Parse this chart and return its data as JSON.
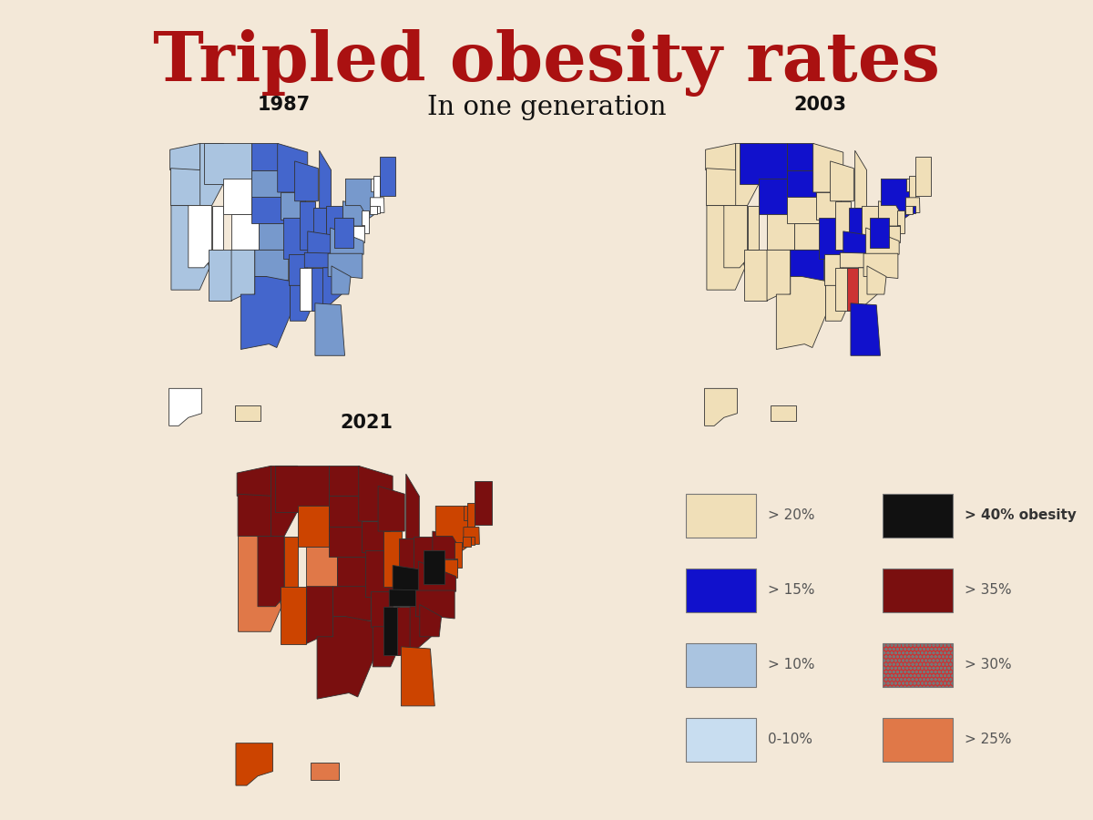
{
  "title": "Tripled obesity rates",
  "subtitle": "In one generation",
  "title_color": "#AA1111",
  "subtitle_color": "#111111",
  "bg_color": "#F3E8D8",
  "year_labels": [
    "1987",
    "2003",
    "2021"
  ],
  "color_map_1987": {
    "dark_blue": "#4466CC",
    "mid_blue": "#7799CC",
    "light_blue": "#AAC4E0",
    "white": "#FFFFFF",
    "yellow": "#F0DFB8"
  },
  "color_map_2003": {
    "dark_blue": "#1111CC",
    "orange_red": "#CC3333",
    "yellow": "#F0DFB8"
  },
  "color_map_2021": {
    "black": "#111111",
    "dark_red": "#7A0F0F",
    "orange_med": "#CC4400",
    "orange_lt": "#E07848"
  },
  "state_data_1987": {
    "AL": "dark_blue",
    "AK": "white",
    "AZ": "light_blue",
    "AR": "dark_blue",
    "CA": "light_blue",
    "CO": "white",
    "CT": "white",
    "DE": "white",
    "FL": "mid_blue",
    "GA": "dark_blue",
    "HI": "yellow",
    "ID": "light_blue",
    "IL": "dark_blue",
    "IN": "dark_blue",
    "IA": "mid_blue",
    "KS": "mid_blue",
    "KY": "dark_blue",
    "LA": "dark_blue",
    "ME": "dark_blue",
    "MD": "white",
    "MA": "white",
    "MI": "dark_blue",
    "MN": "dark_blue",
    "MS": "white",
    "MO": "dark_blue",
    "MT": "light_blue",
    "NE": "dark_blue",
    "NV": "white",
    "NH": "white",
    "NJ": "white",
    "NM": "light_blue",
    "NY": "mid_blue",
    "NC": "mid_blue",
    "ND": "dark_blue",
    "OH": "dark_blue",
    "OK": "mid_blue",
    "OR": "light_blue",
    "PA": "mid_blue",
    "RI": "white",
    "SC": "mid_blue",
    "SD": "mid_blue",
    "TN": "dark_blue",
    "TX": "dark_blue",
    "UT": "white",
    "VT": "white",
    "VA": "mid_blue",
    "WA": "light_blue",
    "WV": "dark_blue",
    "WI": "dark_blue",
    "WY": "white"
  },
  "state_data_2003": {
    "AL": "orange_red",
    "AK": "yellow",
    "AZ": "yellow",
    "AR": "yellow",
    "CA": "yellow",
    "CO": "yellow",
    "CT": "yellow",
    "DE": "yellow",
    "FL": "dark_blue",
    "GA": "yellow",
    "HI": "yellow",
    "ID": "yellow",
    "IL": "yellow",
    "IN": "dark_blue",
    "IA": "yellow",
    "KS": "yellow",
    "KY": "dark_blue",
    "LA": "yellow",
    "ME": "yellow",
    "MD": "yellow",
    "MA": "yellow",
    "MI": "yellow",
    "MN": "yellow",
    "MS": "yellow",
    "MO": "dark_blue",
    "MT": "dark_blue",
    "NE": "yellow",
    "NV": "yellow",
    "NH": "yellow",
    "NJ": "yellow",
    "NM": "yellow",
    "NY": "dark_blue",
    "NC": "yellow",
    "ND": "dark_blue",
    "OH": "yellow",
    "OK": "dark_blue",
    "OR": "yellow",
    "PA": "yellow",
    "RI": "dark_blue",
    "SC": "yellow",
    "SD": "dark_blue",
    "TN": "yellow",
    "TX": "yellow",
    "UT": "yellow",
    "VT": "yellow",
    "VA": "yellow",
    "WA": "yellow",
    "WV": "dark_blue",
    "WI": "yellow",
    "WY": "dark_blue"
  },
  "state_data_2021": {
    "AL": "dark_red",
    "AK": "orange_med",
    "AZ": "orange_med",
    "AR": "dark_red",
    "CA": "orange_lt",
    "CO": "orange_lt",
    "CT": "orange_med",
    "DE": "orange_med",
    "FL": "orange_med",
    "GA": "dark_red",
    "HI": "orange_lt",
    "ID": "dark_red",
    "IL": "orange_med",
    "IN": "dark_red",
    "IA": "dark_red",
    "KS": "dark_red",
    "KY": "black",
    "LA": "dark_red",
    "ME": "dark_red",
    "MD": "orange_med",
    "MA": "orange_med",
    "MI": "dark_red",
    "MN": "dark_red",
    "MS": "black",
    "MO": "dark_red",
    "MT": "dark_red",
    "NE": "dark_red",
    "NV": "dark_red",
    "NH": "orange_med",
    "NJ": "orange_med",
    "NM": "dark_red",
    "NY": "orange_med",
    "NC": "dark_red",
    "ND": "dark_red",
    "OH": "dark_red",
    "OK": "dark_red",
    "OR": "dark_red",
    "PA": "dark_red",
    "RI": "orange_med",
    "SC": "dark_red",
    "SD": "dark_red",
    "TN": "black",
    "TX": "dark_red",
    "UT": "orange_med",
    "VT": "orange_med",
    "VA": "dark_red",
    "WA": "dark_red",
    "WV": "black",
    "WI": "dark_red",
    "WY": "orange_med"
  },
  "legend_items": [
    {
      "color": "#F0DFB8",
      "label": "> 20%",
      "side": "left"
    },
    {
      "color": "#1111CC",
      "label": "> 15%",
      "side": "left"
    },
    {
      "color": "#AAC4E0",
      "label": "> 10%",
      "side": "left"
    },
    {
      "color": "#C8DDF0",
      "label": "0-10%",
      "side": "left"
    },
    {
      "color": "#111111",
      "label": "> 40% obesity",
      "side": "right",
      "bold": true
    },
    {
      "color": "#7A0F0F",
      "label": "> 35%",
      "side": "right"
    },
    {
      "color": "#CC3333",
      "label": "> 30%",
      "side": "right",
      "hatch": true
    },
    {
      "color": "#E07848",
      "label": "> 25%",
      "side": "right"
    }
  ]
}
